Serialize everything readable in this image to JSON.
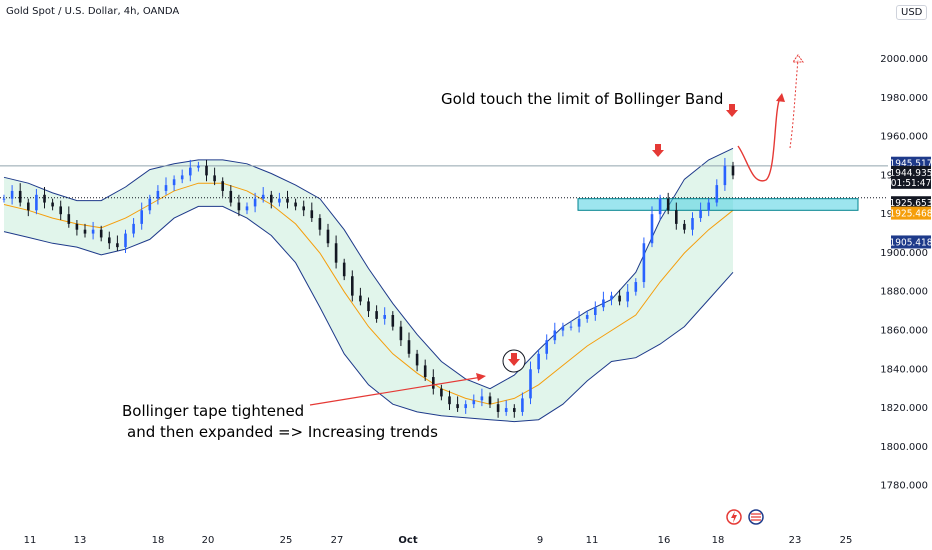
{
  "header": {
    "title": "Gold Spot / U.S. Dollar, 4h, OANDA",
    "currency": "USD"
  },
  "chart_data": {
    "type": "candlestick",
    "title": "Gold Spot / U.S. Dollar, 4h, OANDA",
    "ylim": [
      1770,
      2015
    ],
    "y_ticks": [
      1780,
      1800,
      1820,
      1840,
      1860,
      1880,
      1900,
      1920,
      1940,
      1960,
      1980,
      2000
    ],
    "y_tick_labels": [
      "1780.000",
      "1800.000",
      "1820.000",
      "1840.000",
      "1860.000",
      "1880.000",
      "1900.000",
      "1920.000",
      "1940.000",
      "1960.000",
      "1980.000",
      "2000.000"
    ],
    "x_tick_labels": [
      "11",
      "13",
      "18",
      "20",
      "25",
      "27",
      "Oct",
      "9",
      "11",
      "16",
      "18",
      "23",
      "25"
    ],
    "price_close_path": [
      [
        1928,
        1932,
        1926,
        1922,
        1930,
        1926,
        1924,
        1920,
        1915,
        1912,
        1910,
        1912,
        1908,
        1905,
        1903,
        1910
      ],
      [
        1915,
        1922,
        1928,
        1932,
        1935,
        1938,
        1940,
        1944,
        1945,
        1940,
        1937,
        1932,
        1926,
        1922,
        1924,
        1928
      ],
      [
        1930,
        1926,
        1928,
        1926,
        1924,
        1922,
        1918,
        1912,
        1905,
        1895,
        1888,
        1878,
        1875,
        1870,
        1866,
        1868
      ],
      [
        1862,
        1855,
        1848,
        1842,
        1836,
        1830,
        1826,
        1822,
        1820,
        1822,
        1824,
        1826,
        1822,
        1818,
        1820,
        1818
      ],
      [
        1825,
        1840,
        1848,
        1855,
        1860,
        1862,
        1862,
        1866,
        1868,
        1872,
        1876,
        1878,
        1875,
        1880,
        1885,
        1905
      ],
      [
        1920,
        1928,
        1922,
        1915,
        1912,
        1918,
        1922,
        1926,
        1935,
        1945,
        1940
      ]
    ],
    "bollinger_middle": [
      1925,
      1922,
      1918,
      1915,
      1913,
      1918,
      1925,
      1932,
      1936,
      1936,
      1932,
      1925,
      1915,
      1900,
      1880,
      1862,
      1848,
      1838,
      1830,
      1825,
      1822,
      1825,
      1832,
      1842,
      1852,
      1860,
      1868,
      1885,
      1900,
      1912,
      1922
    ],
    "price_lines": [
      {
        "value": 1945.517,
        "label": "1945.517",
        "color": "#1e3a8a"
      },
      {
        "value": 1944.935,
        "label": "1944.935",
        "color": "#131722"
      },
      {
        "value": 1925.653,
        "label": "1925.653",
        "color": "#131722"
      },
      {
        "value": 1925.468,
        "label": "1925.468",
        "color": "#f59e0b"
      },
      {
        "value": 1905.418,
        "label": "1905.418",
        "color": "#1e3a8a"
      }
    ],
    "countdown": "01:51:47",
    "zone": {
      "low": 1922,
      "high": 1928
    },
    "annotations": [
      {
        "text": "Gold touch the limit of Bollinger Band"
      },
      {
        "text": "Bollinger tape tightened"
      },
      {
        "text": "and then expanded => Increasing trends"
      }
    ]
  }
}
